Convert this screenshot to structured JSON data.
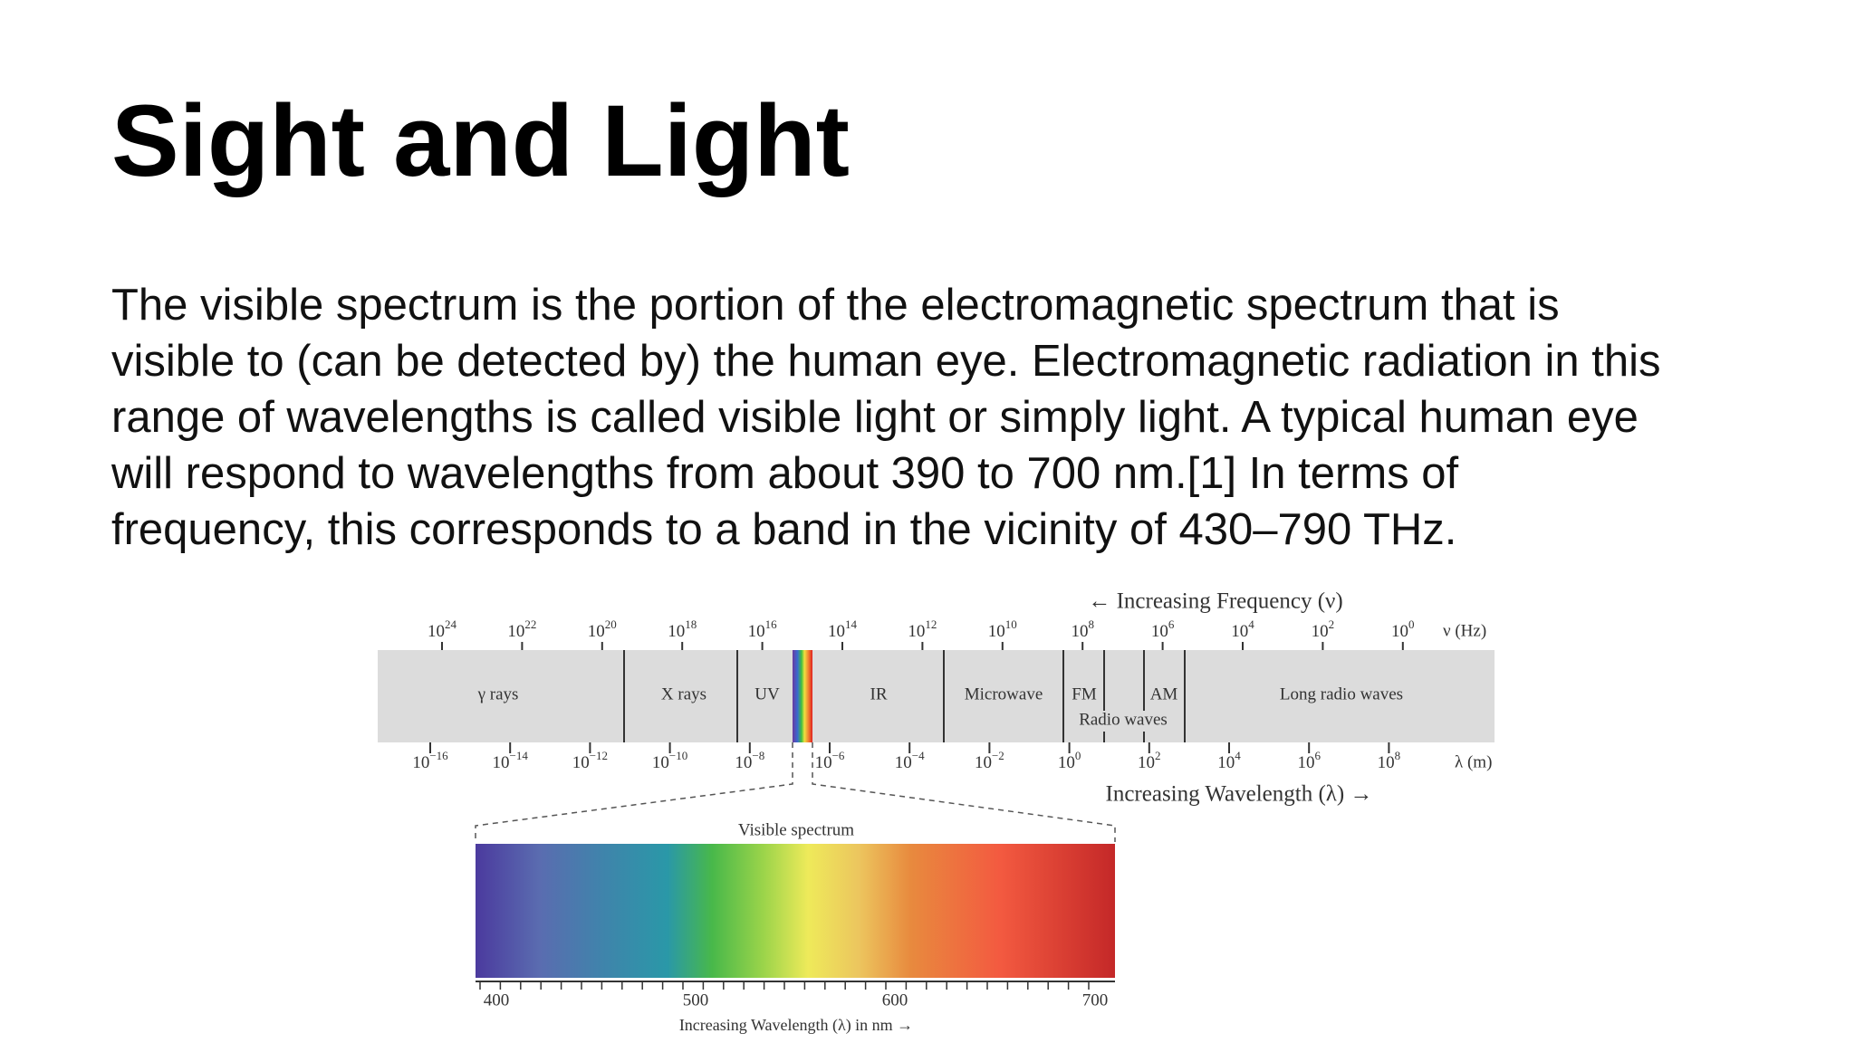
{
  "title": "Sight and Light",
  "body": [
    "The visible spectrum is the portion of the electromagnetic spectrum that is",
    "visible to (can be detected by) the human eye. Electromagnetic radiation in this",
    "range of wavelengths is called visible light or simply light. A typical human eye",
    "will respond to wavelengths from about 390 to 700 nm.[1] In terms of",
    "frequency, this corresponds to a band in the vicinity of 430–790 THz."
  ],
  "spectrum": {
    "frequency_axis_title": "← Increasing Frequency (ν)",
    "frequency_unit": "ν (Hz)",
    "frequency_ticks": [
      {
        "base": "10",
        "exp": "24"
      },
      {
        "base": "10",
        "exp": "22"
      },
      {
        "base": "10",
        "exp": "20"
      },
      {
        "base": "10",
        "exp": "18"
      },
      {
        "base": "10",
        "exp": "16"
      },
      {
        "base": "10",
        "exp": "14"
      },
      {
        "base": "10",
        "exp": "12"
      },
      {
        "base": "10",
        "exp": "10"
      },
      {
        "base": "10",
        "exp": "8"
      },
      {
        "base": "10",
        "exp": "6"
      },
      {
        "base": "10",
        "exp": "4"
      },
      {
        "base": "10",
        "exp": "2"
      },
      {
        "base": "10",
        "exp": "0"
      }
    ],
    "wavelength_ticks": [
      {
        "base": "10",
        "exp": "−16"
      },
      {
        "base": "10",
        "exp": "−14"
      },
      {
        "base": "10",
        "exp": "−12"
      },
      {
        "base": "10",
        "exp": "−10"
      },
      {
        "base": "10",
        "exp": "−8"
      },
      {
        "base": "10",
        "exp": "−6"
      },
      {
        "base": "10",
        "exp": "−4"
      },
      {
        "base": "10",
        "exp": "−2"
      },
      {
        "base": "10",
        "exp": "0"
      },
      {
        "base": "10",
        "exp": "2"
      },
      {
        "base": "10",
        "exp": "4"
      },
      {
        "base": "10",
        "exp": "6"
      },
      {
        "base": "10",
        "exp": "8"
      }
    ],
    "wavelength_unit": "λ (m)",
    "wavelength_axis_title": "Increasing Wavelength (λ) →",
    "bands": [
      "γ rays",
      "X rays",
      "UV",
      "IR",
      "Microwave",
      "FM",
      "AM",
      "Long radio waves"
    ],
    "radio_label": "Radio waves",
    "visible": {
      "title": "Visible spectrum",
      "ticks": [
        "400",
        "500",
        "600",
        "700"
      ],
      "axis_title": "Increasing Wavelength (λ) in nm →"
    }
  }
}
